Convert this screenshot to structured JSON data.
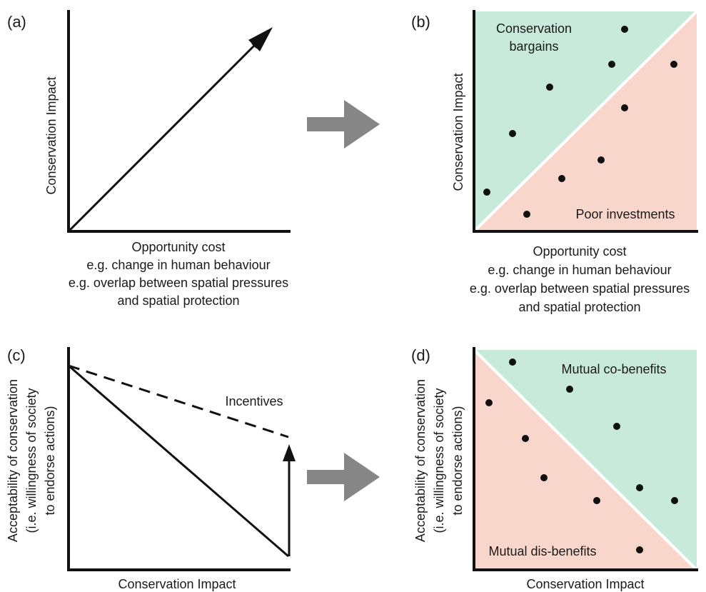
{
  "panel_a": {
    "label": "(a)",
    "ylabel": "Conservation Impact",
    "xlabel_lines": [
      "Opportunity cost",
      "e.g. change in human behaviour",
      "e.g. overlap between spatial pressures",
      "and spatial protection"
    ]
  },
  "panel_b": {
    "label": "(b)",
    "ylabel": "Conservation Impact",
    "xlabel_lines": [
      "Opportunity cost",
      "e.g. change in human behaviour",
      "e.g. overlap between spatial pressures",
      "and spatial protection"
    ],
    "region_upper_lines": [
      "Conservation",
      "bargains"
    ],
    "region_lower": "Poor investments",
    "color_upper": "#c8eadb",
    "color_lower": "#f9d6cc"
  },
  "panel_c": {
    "label": "(c)",
    "ylabel_lines": [
      "Acceptability of conservation",
      "(i.e. willingness of society",
      "to endorse actions)"
    ],
    "xlabel": "Conservation Impact",
    "incentives_label": "Incentives"
  },
  "panel_d": {
    "label": "(d)",
    "ylabel_lines": [
      "Acceptability of conservation",
      "(i.e. willingness of society",
      "to endorse actions)"
    ],
    "xlabel": "Conservation Impact",
    "region_upper": "Mutual co-benefits",
    "region_lower": "Mutual dis-benefits",
    "color_upper": "#c8eadb",
    "color_lower": "#f9d6cc"
  },
  "transition_arrow_color": "#868686"
}
